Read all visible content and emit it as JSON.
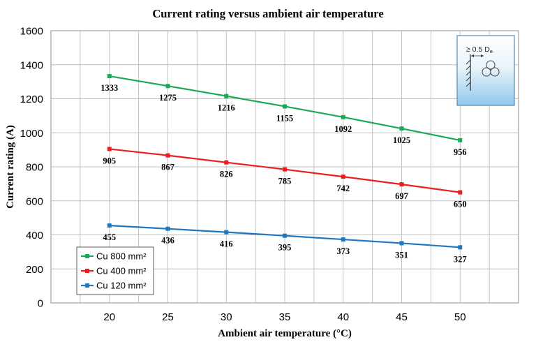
{
  "chart_data": {
    "type": "line",
    "title": "Current rating versus ambient air temperature",
    "xlabel": "Ambient air temperature (°C)",
    "ylabel": "Current rating (A)",
    "x": [
      20,
      25,
      30,
      35,
      40,
      45,
      50
    ],
    "xlim": [
      15,
      55
    ],
    "ylim": [
      0,
      1600
    ],
    "yticks": [
      0,
      200,
      400,
      600,
      800,
      1000,
      1200,
      1400,
      1600
    ],
    "xticks": [
      20,
      25,
      30,
      35,
      40,
      45,
      50
    ],
    "grid": true,
    "legend_position": "bottom-left",
    "series": [
      {
        "name": "Cu 800 mm²",
        "color": "#1aaa55",
        "values": [
          1333,
          1275,
          1216,
          1155,
          1092,
          1025,
          956
        ]
      },
      {
        "name": "Cu 400 mm²",
        "color": "#ee1c1c",
        "values": [
          905,
          867,
          826,
          785,
          742,
          697,
          650
        ]
      },
      {
        "name": "Cu 120 mm²",
        "color": "#1f78c1",
        "values": [
          455,
          436,
          416,
          395,
          373,
          351,
          327
        ]
      }
    ],
    "inset": {
      "label": "≥ 0.5 D",
      "subscript": "e",
      "icon": "cable-trefoil-spacing-icon"
    }
  }
}
